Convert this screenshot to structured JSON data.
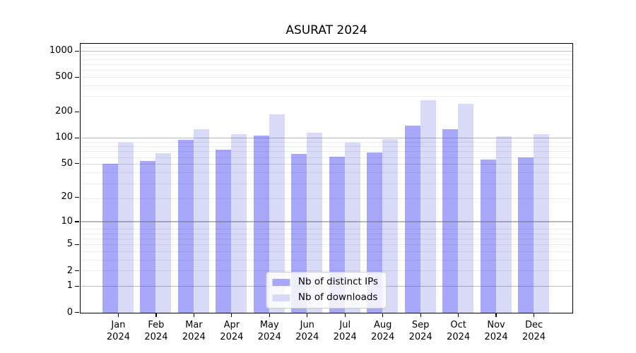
{
  "title": "ASURAT 2024",
  "colors": {
    "bar_ips": "#a8a8fa",
    "bar_downloads": "#d9d9f8",
    "grid_major": "#b0b0b0",
    "grid_minor": "#ececec",
    "spine": "#000000",
    "legend_border": "#cccccc"
  },
  "legend": {
    "items": [
      {
        "label": "Nb of distinct IPs",
        "series": "ips"
      },
      {
        "label": "Nb of downloads",
        "series": "downloads"
      }
    ],
    "position": "lower center"
  },
  "y_axis": {
    "tick_values": [
      0,
      1,
      2,
      5,
      10,
      20,
      50,
      100,
      200,
      500,
      1000
    ],
    "tick_labels": [
      "0",
      "1",
      "2",
      "5",
      "10",
      "20",
      "50",
      "100",
      "200",
      "500",
      "1000"
    ],
    "scale": "log10(value+1)",
    "max": 1200
  },
  "x_axis": {
    "categories": [
      {
        "month": "Jan",
        "year": "2024"
      },
      {
        "month": "Feb",
        "year": "2024"
      },
      {
        "month": "Mar",
        "year": "2024"
      },
      {
        "month": "Apr",
        "year": "2024"
      },
      {
        "month": "May",
        "year": "2024"
      },
      {
        "month": "Jun",
        "year": "2024"
      },
      {
        "month": "Jul",
        "year": "2024"
      },
      {
        "month": "Aug",
        "year": "2024"
      },
      {
        "month": "Sep",
        "year": "2024"
      },
      {
        "month": "Oct",
        "year": "2024"
      },
      {
        "month": "Nov",
        "year": "2024"
      },
      {
        "month": "Dec",
        "year": "2024"
      }
    ]
  },
  "chart_data": {
    "type": "bar",
    "title": "ASURAT 2024",
    "categories": [
      "Jan 2024",
      "Feb 2024",
      "Mar 2024",
      "Apr 2024",
      "May 2024",
      "Jun 2024",
      "Jul 2024",
      "Aug 2024",
      "Sep 2024",
      "Oct 2024",
      "Nov 2024",
      "Dec 2024"
    ],
    "series": [
      {
        "name": "Nb of distinct IPs",
        "color": "#a8a8fa",
        "values": [
          50,
          54,
          96,
          74,
          108,
          66,
          61,
          68,
          140,
          126,
          56,
          60
        ]
      },
      {
        "name": "Nb of downloads",
        "color": "#d9d9f8",
        "values": [
          88,
          67,
          128,
          112,
          188,
          116,
          88,
          97,
          273,
          250,
          105,
          112
        ]
      }
    ],
    "xlabel": "",
    "ylabel": "",
    "y_scale": "log10(value+1)",
    "y_ticks": [
      0,
      1,
      2,
      5,
      10,
      20,
      50,
      100,
      200,
      500,
      1000
    ],
    "ylim": [
      0,
      1200
    ],
    "grid": "horizontal major (powers of 10) + minor, drawn over bars",
    "legend_position": "lower center"
  }
}
